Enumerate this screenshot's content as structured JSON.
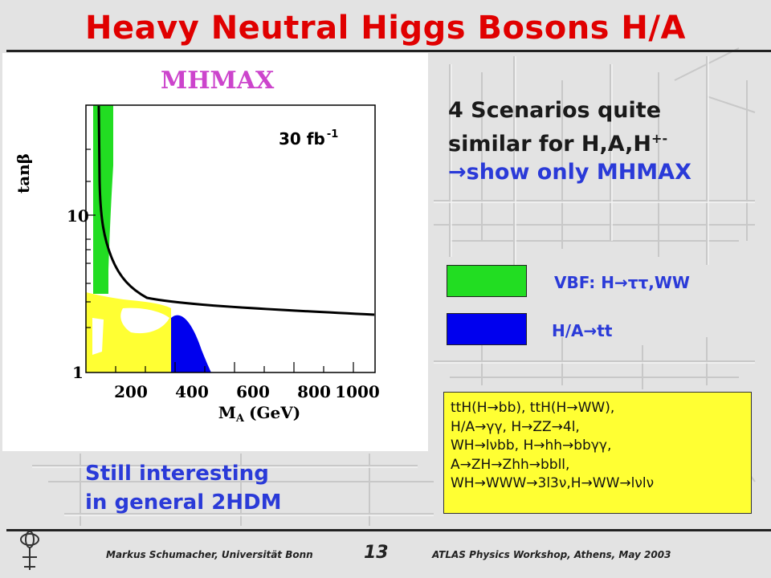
{
  "slide": {
    "title": "Heavy Neutral Higgs Bosons H/A",
    "plot": {
      "plot_title": "MHMAX",
      "y_axis_label": "tanβ",
      "x_axis_label": "M",
      "x_axis_label_sub": "A",
      "x_axis_label_unit": "(GeV)",
      "luminosity": "30 fb",
      "luminosity_sup": "-1",
      "x_ticks": [
        "200",
        "400",
        "600",
        "800",
        "1000"
      ],
      "y_ticks": [
        "1",
        "10"
      ],
      "colors": {
        "vbf": "#22dd22",
        "tt": "#0000ee",
        "other": "#ffff33",
        "curve": "#000000"
      }
    },
    "scenarios": {
      "line1": "4 Scenarios quite",
      "line2": "similar for H,A,H",
      "line2_sup": "+-",
      "line3": "→show only MHMAX"
    },
    "legend": {
      "vbf": {
        "label": "VBF: H→ττ,WW",
        "color": "#22dd22"
      },
      "tt": {
        "label": "H/A→tt",
        "color": "#0000ee"
      }
    },
    "channels": [
      "ttH(H→bb), ttH(H→WW),",
      "H/A→γγ,       H→ZZ→4l,",
      "WH→lνbb,   H→hh→bbγγ,",
      "A→ZH→Zhh→bbll,",
      "WH→WWW→3l3ν,H→WW→lνlν"
    ],
    "note": {
      "line1": "Still interesting",
      "line2": "in general 2HDM"
    },
    "footer": {
      "author": "Markus Schumacher,  Universität Bonn",
      "page": "13",
      "event": "ATLAS Physics Workshop, Athens, May 2003"
    }
  }
}
